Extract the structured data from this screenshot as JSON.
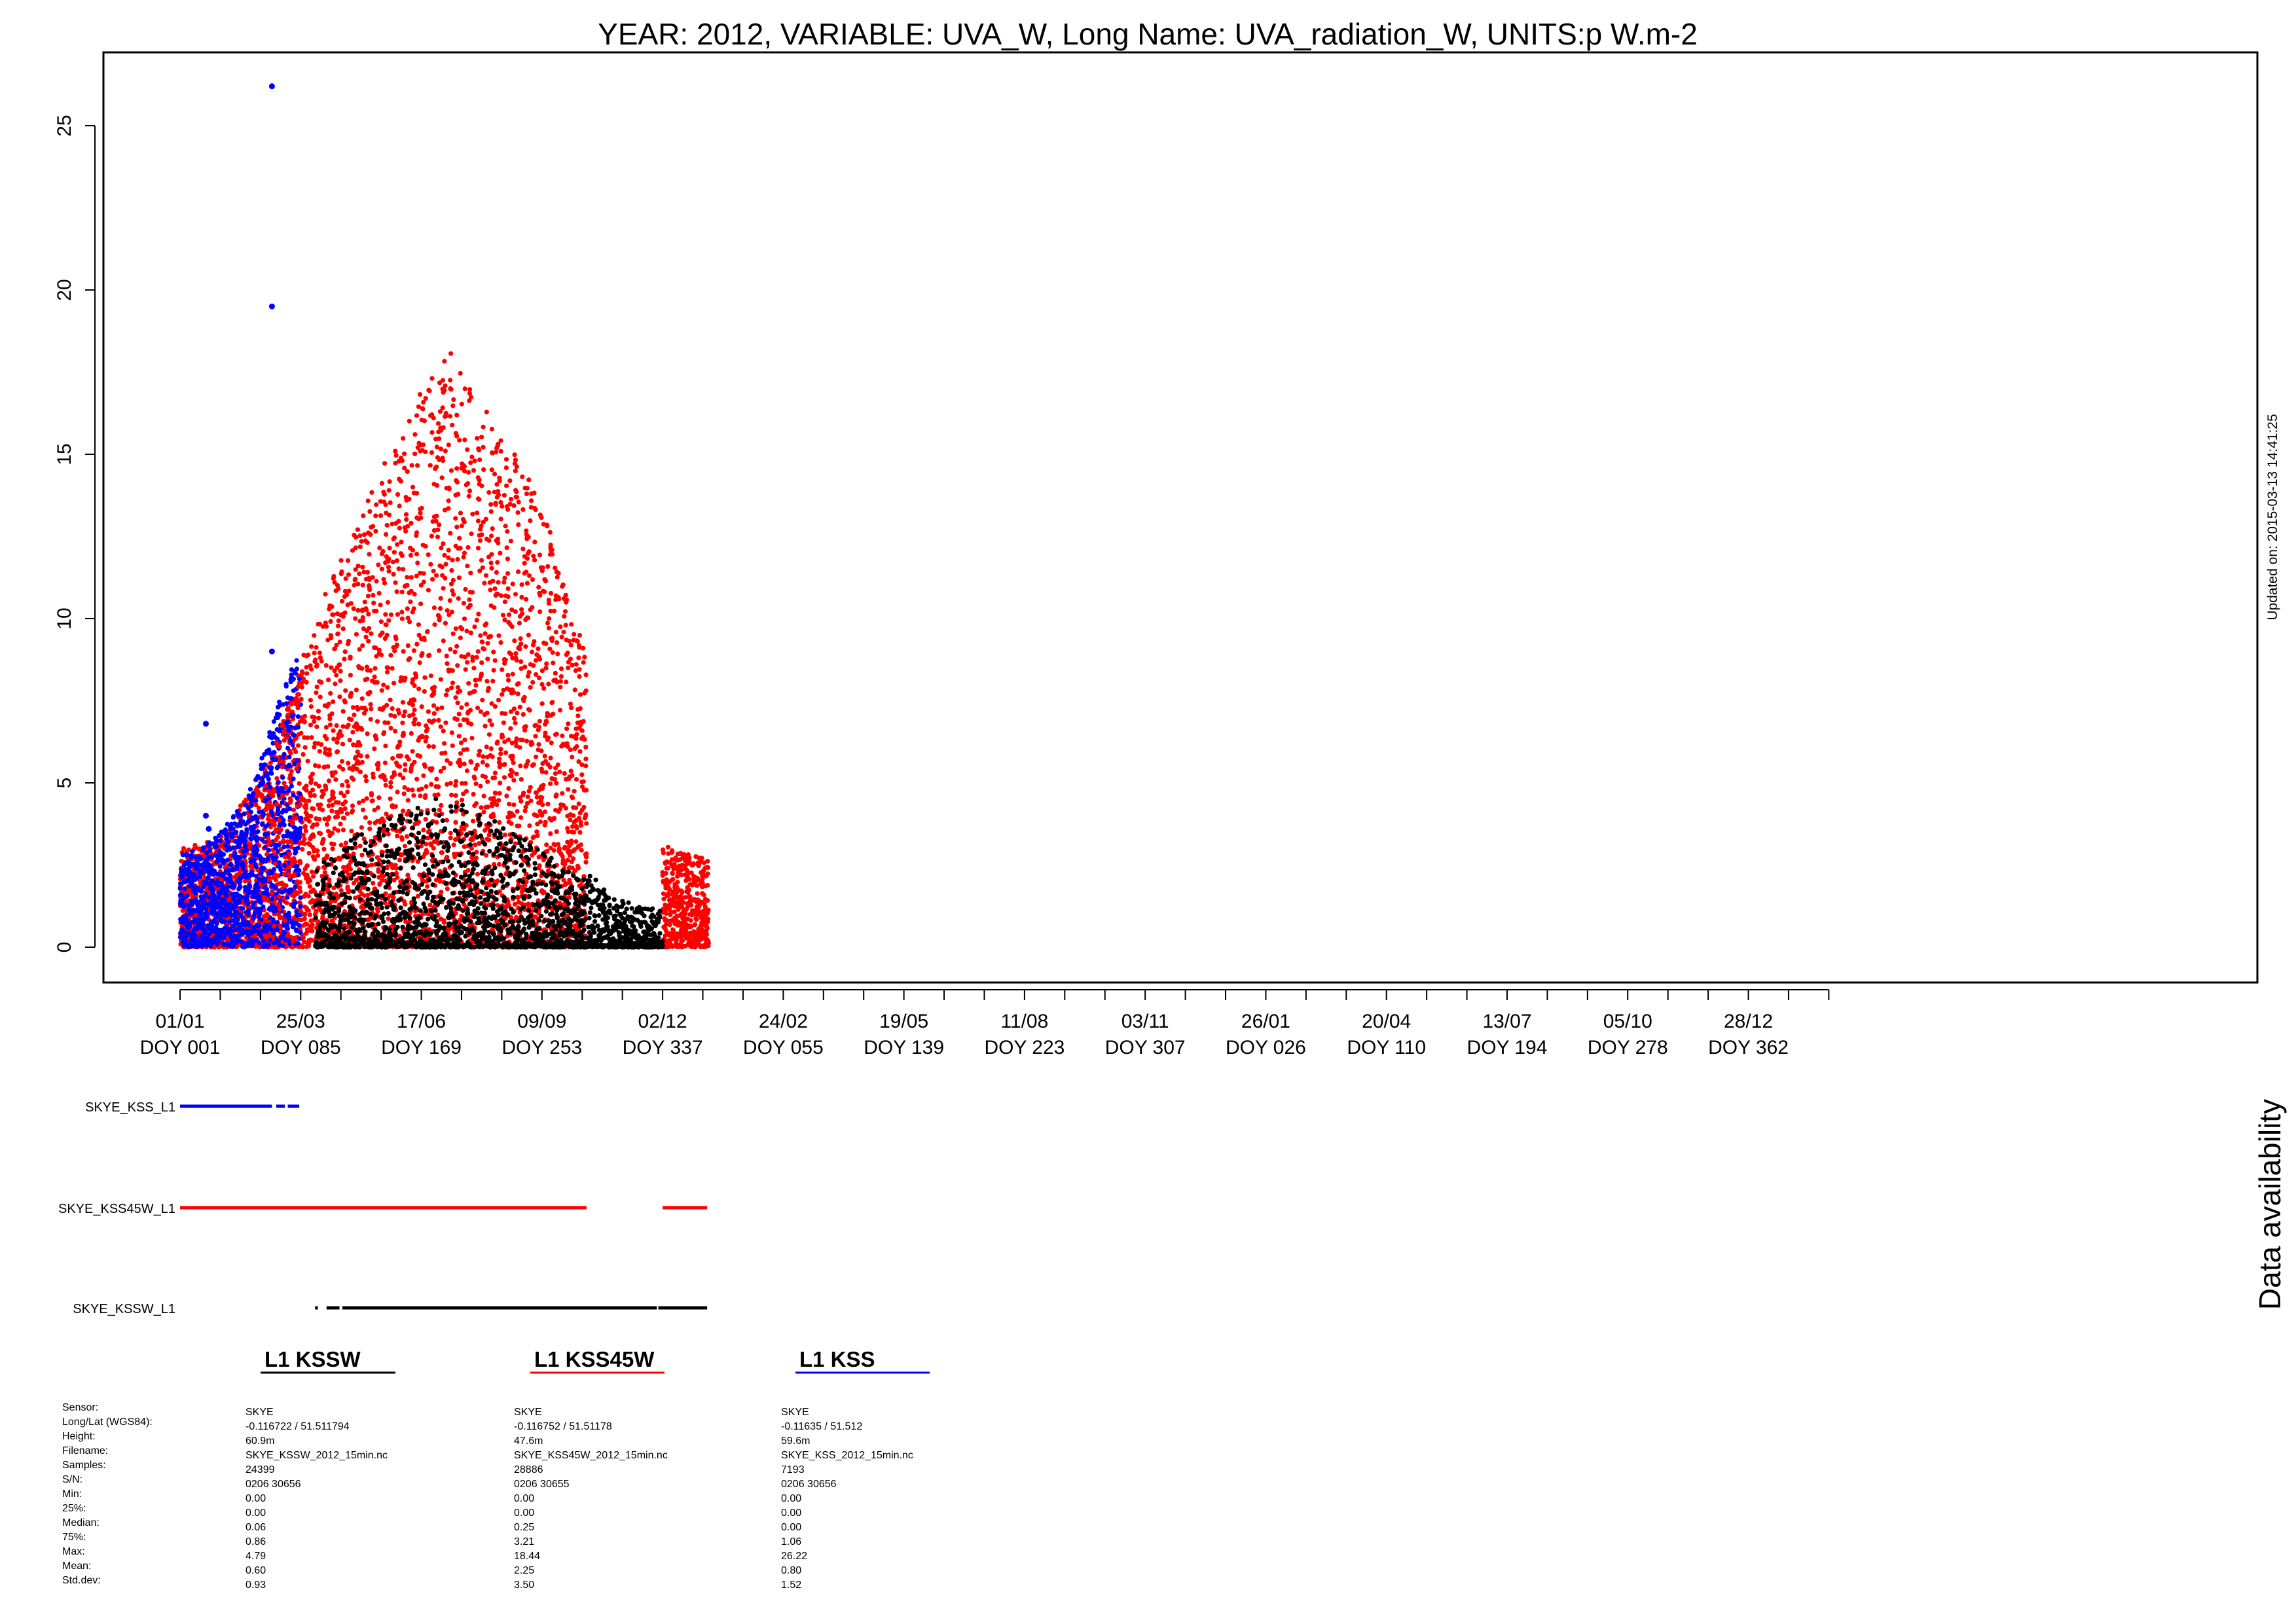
{
  "title": "YEAR: 2012, VARIABLE: UVA_W, Long Name: UVA_radiation_W, UNITS:p W.m-2",
  "updated": "Updated on: 2015-03-13 14:41:25",
  "availability_label": "Data availability",
  "chart_data": {
    "type": "scatter",
    "title": "YEAR: 2012, VARIABLE: UVA_W, Long Name: UVA_radiation_W, UNITS:p W.m-2",
    "ylim": [
      0,
      27
    ],
    "yticks": [
      0,
      5,
      10,
      15,
      20,
      25
    ],
    "x_day_range": [
      -12,
      1250
    ],
    "xticks": [
      {
        "day": 1,
        "date": "01/01",
        "doy": "DOY 001"
      },
      {
        "day": 85,
        "date": "25/03",
        "doy": "DOY 085"
      },
      {
        "day": 169,
        "date": "17/06",
        "doy": "DOY 169"
      },
      {
        "day": 253,
        "date": "09/09",
        "doy": "DOY 253"
      },
      {
        "day": 337,
        "date": "02/12",
        "doy": "DOY 337"
      },
      {
        "day": 421,
        "date": "24/02",
        "doy": "DOY 055"
      },
      {
        "day": 505,
        "date": "19/05",
        "doy": "DOY 139"
      },
      {
        "day": 589,
        "date": "11/08",
        "doy": "DOY 223"
      },
      {
        "day": 673,
        "date": "03/11",
        "doy": "DOY 307"
      },
      {
        "day": 757,
        "date": "26/01",
        "doy": "DOY 026"
      },
      {
        "day": 841,
        "date": "20/04",
        "doy": "DOY 110"
      },
      {
        "day": 925,
        "date": "13/07",
        "doy": "DOY 194"
      },
      {
        "day": 1009,
        "date": "05/10",
        "doy": "DOY 278"
      },
      {
        "day": 1093,
        "date": "28/12",
        "doy": "DOY 362"
      }
    ],
    "minor_tick_step_days": 28,
    "grid": false,
    "series": [
      {
        "name": "SKYE_KSSW_L1",
        "color": "#000000",
        "envelope": {
          "x": [
            95,
            110,
            130,
            150,
            170,
            190,
            210,
            230,
            250,
            270,
            280,
            284,
            290,
            300,
            310,
            320,
            335,
            336
          ],
          "y": [
            2.4,
            3.0,
            3.6,
            4.0,
            4.6,
            4.5,
            4.1,
            3.6,
            3.0,
            2.4,
            2.0,
            2.2,
            2.2,
            1.5,
            1.4,
            1.3,
            1.1,
            0.4
          ]
        },
        "availability": [
          [
            95,
            97
          ],
          [
            103,
            112
          ],
          [
            114,
            333
          ],
          [
            334,
            368
          ]
        ]
      },
      {
        "name": "SKYE_KSS45W_L1",
        "color": "#ff0000",
        "envelope": {
          "x": [
            1,
            30,
            60,
            84,
            100,
            120,
            140,
            160,
            175,
            190,
            205,
            220,
            240,
            255,
            268,
            283,
            284,
            337,
            345,
            355,
            368
          ],
          "y": [
            3.0,
            3.4,
            5.5,
            8.5,
            10.6,
            12.5,
            14.5,
            16.3,
            17.5,
            18.4,
            17.0,
            16.0,
            14.5,
            13.2,
            11.0,
            9.0,
            0,
            3.1,
            3.0,
            2.8,
            2.7
          ]
        },
        "gaps": [
          [
            284,
            337
          ]
        ],
        "availability": [
          [
            1,
            284
          ],
          [
            337,
            368
          ]
        ]
      },
      {
        "name": "SKYE_KSS_L1",
        "color": "#0000ff",
        "envelope": {
          "x": [
            1,
            15,
            30,
            45,
            55,
            65,
            75,
            84
          ],
          "y": [
            2.8,
            3.0,
            3.6,
            4.4,
            5.5,
            6.8,
            8.2,
            9.0
          ]
        },
        "outliers": [
          {
            "x": 19,
            "y": 6.8
          },
          {
            "x": 65,
            "y": 26.2
          },
          {
            "x": 65,
            "y": 19.5
          },
          {
            "x": 65,
            "y": 9.0
          },
          {
            "x": 19,
            "y": 4.0
          },
          {
            "x": 21,
            "y": 3.6
          }
        ],
        "availability": [
          [
            1,
            65
          ],
          [
            68,
            74
          ],
          [
            76,
            84
          ]
        ]
      }
    ]
  },
  "legend": [
    {
      "label": "L1 KSSW",
      "color": "#000000"
    },
    {
      "label": "L1 KSS45W",
      "color": "#ff0000"
    },
    {
      "label": "L1 KSS",
      "color": "#0000ff"
    }
  ],
  "stats": {
    "labels": [
      "Sensor:",
      "Long/Lat (WGS84):",
      "Height:",
      "Filename:",
      "Samples:",
      "S/N:",
      "Min:",
      "25%:",
      "Median:",
      "75%:",
      "Max:",
      "Mean:",
      "Std.dev:"
    ],
    "columns": [
      [
        "SKYE",
        "-0.116722 / 51.511794",
        "60.9m",
        "SKYE_KSSW_2012_15min.nc",
        "24399",
        "0206 30656",
        "0.00",
        "0.00",
        "0.06",
        "0.86",
        "4.79",
        "0.60",
        "0.93"
      ],
      [
        "SKYE",
        "-0.116752 / 51.51178",
        "47.6m",
        "SKYE_KSS45W_2012_15min.nc",
        "28886",
        "0206 30655",
        "0.00",
        "0.00",
        "0.25",
        "3.21",
        "18.44",
        "2.25",
        "3.50"
      ],
      [
        "SKYE",
        "-0.11635 / 51.512",
        "59.6m",
        "SKYE_KSS_2012_15min.nc",
        "7193",
        "0206 30656",
        "0.00",
        "0.00",
        "0.00",
        "1.06",
        "26.22",
        "0.80",
        "1.52"
      ]
    ]
  }
}
